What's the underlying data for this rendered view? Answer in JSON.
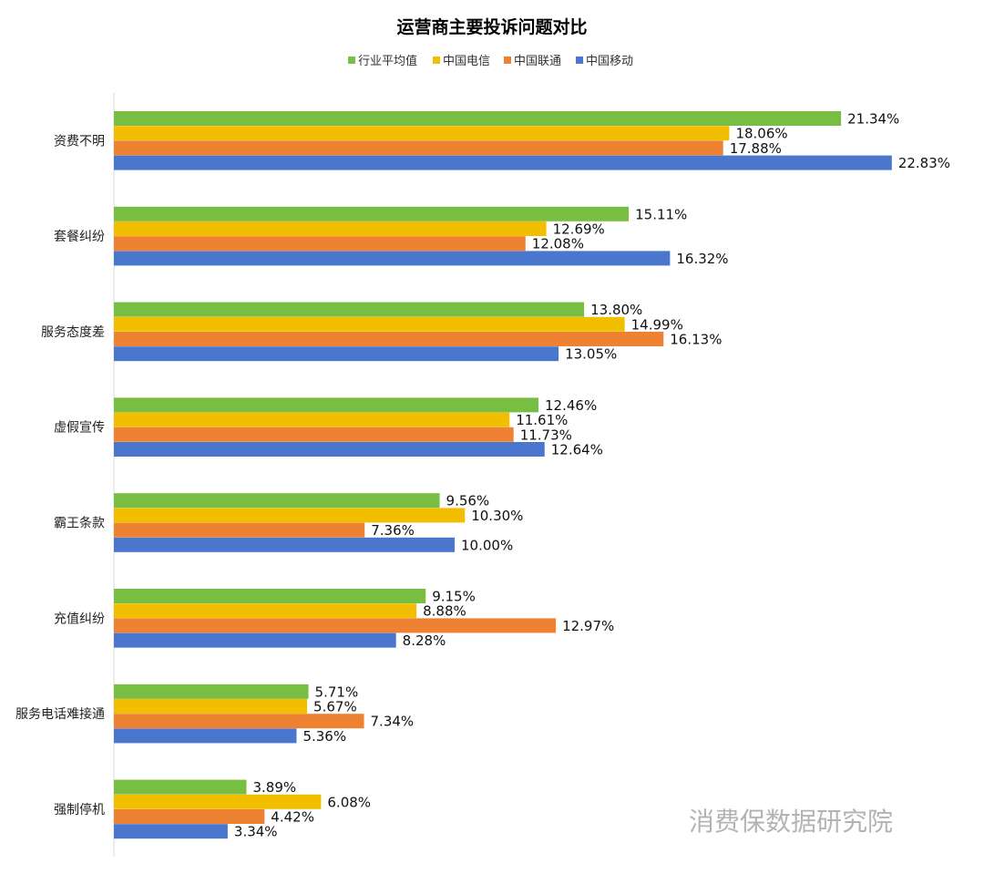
{
  "chart_data": {
    "type": "bar",
    "orientation": "horizontal",
    "title": "运营商主要投诉问题对比",
    "categories": [
      "资费不明",
      "套餐纠纷",
      "服务态度差",
      "虚假宣传",
      "霸王条款",
      "充值纠纷",
      "服务电话难接通",
      "强制停机"
    ],
    "series": [
      {
        "name": "行业平均值",
        "color": "#77BE43",
        "values": [
          21.34,
          15.11,
          13.8,
          12.46,
          9.56,
          9.15,
          5.71,
          3.89
        ],
        "labels": [
          "21.34%",
          "15.11%",
          "13.80%",
          "12.46%",
          "9.56%",
          "9.15%",
          "5.71%",
          "3.89%"
        ]
      },
      {
        "name": "中国电信",
        "color": "#F2BE00",
        "values": [
          18.06,
          12.69,
          14.99,
          11.61,
          10.3,
          8.88,
          5.67,
          6.08
        ],
        "labels": [
          "18.06%",
          "12.69%",
          "14.99%",
          "11.61%",
          "10.30%",
          "8.88%",
          "5.67%",
          "6.08%"
        ]
      },
      {
        "name": "中国联通",
        "color": "#EE8232",
        "values": [
          17.88,
          12.08,
          16.13,
          11.73,
          7.36,
          12.97,
          7.34,
          4.42
        ],
        "labels": [
          "17.88%",
          "12.08%",
          "16.13%",
          "11.73%",
          "7.36%",
          "12.97%",
          "7.34%",
          "4.42%"
        ]
      },
      {
        "name": "中国移动",
        "color": "#4A76CD",
        "values": [
          22.83,
          16.32,
          13.05,
          12.64,
          10.0,
          8.28,
          5.36,
          3.34
        ],
        "labels": [
          "22.83%",
          "16.32%",
          "13.05%",
          "12.64%",
          "10.00%",
          "8.28%",
          "5.36%",
          "3.34%"
        ]
      }
    ],
    "legend_order": [
      "行业平均值",
      "中国电信",
      "中国联通",
      "中国移动"
    ],
    "legend_position": "top",
    "grid": false,
    "xlim": [
      0,
      25
    ]
  },
  "watermark": "消费保数据研究院"
}
